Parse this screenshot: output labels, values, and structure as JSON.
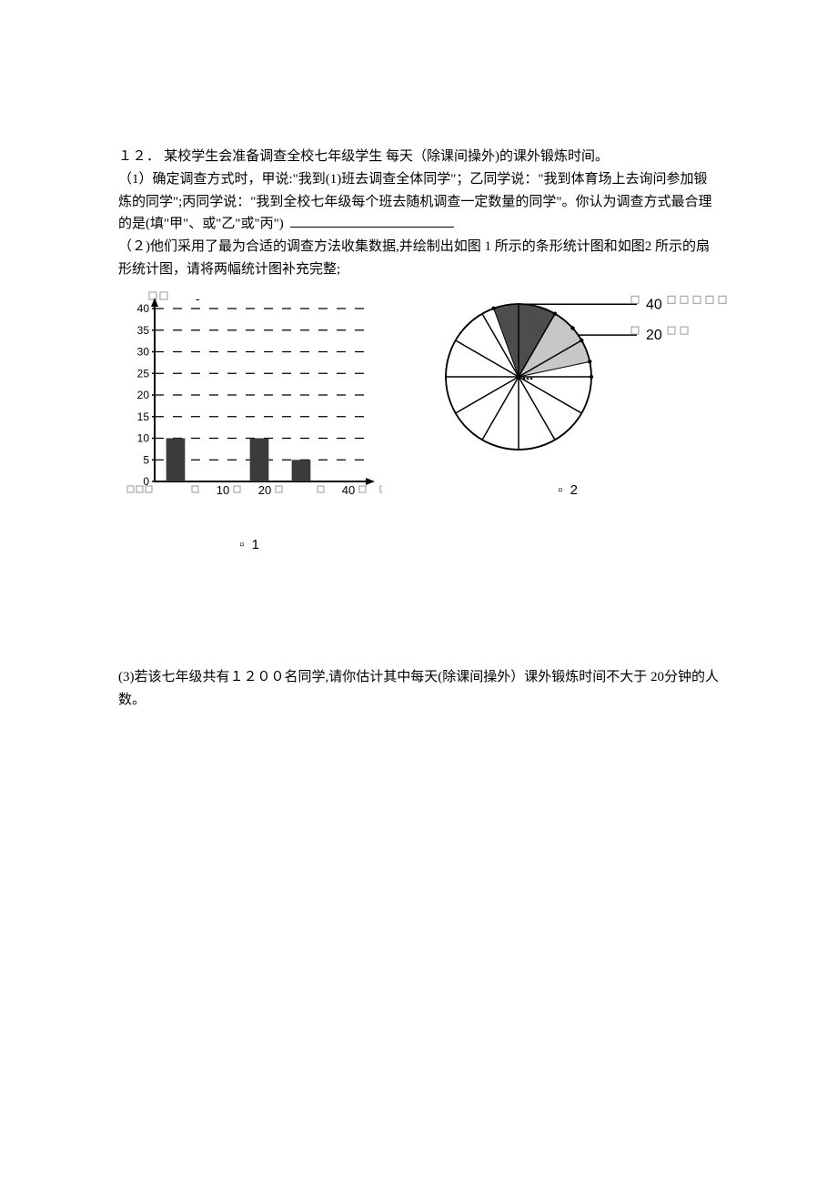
{
  "question": {
    "number": "１２．",
    "intro": "某校学生会准备调查全校七年级学生 每天（除课间操外)的课外锻炼时间。",
    "p1_prefix": "（1）确定调查方式时，甲说:\"我到(1)班去调查全体同学\"；乙同学说：\"我到体育场上去询问参加锻炼的同学\";丙同学说：\"我到全校七年级每个班去随机调查一定数量的同学\"。你认为调查方式最合理的是(填\"甲\"、或\"乙\"或\"丙\")",
    "p2": "（２)他们采用了最为合适的调查方法收集数据,并绘制出如图 1 所示的条形统计图和如图2 所示的扇形统计图，请将两幅统计图补充完整;",
    "p3": "(3)若该七年级共有１２００名同学,请你估计其中每天(除课间操外）课外锻炼时间不大于 20分钟的人数。"
  },
  "bar_chart": {
    "y_ticks": [
      0,
      5,
      10,
      15,
      20,
      25,
      30,
      35,
      40
    ],
    "x_cat_labels": [
      "",
      "10",
      "20",
      "",
      "40"
    ],
    "x_end_box": true,
    "bars": [
      {
        "x_slot": 0,
        "value": 10,
        "fill": "#3b3b3b"
      },
      {
        "x_slot": 2,
        "value": 10,
        "fill": "#3b3b3b"
      },
      {
        "x_slot": 3,
        "value": 5,
        "fill": "#3b3b3b"
      }
    ],
    "top_dash": "-",
    "grid_color": "#000000",
    "axis_color": "#000000",
    "caption_prefix": "▫",
    "caption_text": "1"
  },
  "pie_chart": {
    "slices": [
      {
        "start": -20,
        "end": 30,
        "fill": "#4d4d4d"
      },
      {
        "start": 30,
        "end": 78,
        "fill": "#c7c7c7"
      }
    ],
    "spokes": 12,
    "line_color": "#000000",
    "labels": [
      {
        "text_prefix": "▫",
        "text": "40",
        "text_suffix": "▫ ▫ ▫ ▫ ▫",
        "angle": 5
      },
      {
        "text_prefix": "▫",
        "text": "20",
        "text_suffix": "▫ ▫",
        "angle": 55
      }
    ],
    "caption_prefix": "▫",
    "caption_text": "2"
  },
  "colors": {
    "text": "#000000",
    "bg": "#ffffff"
  }
}
